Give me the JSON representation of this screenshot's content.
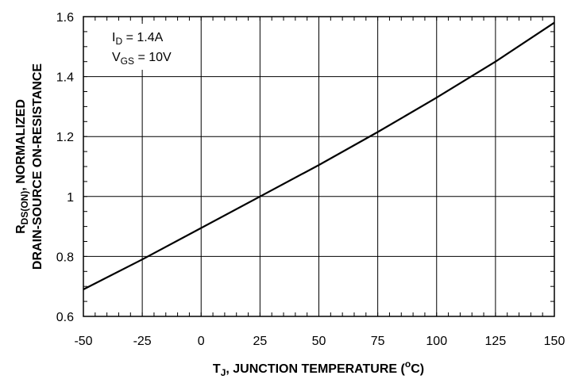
{
  "chart_data": {
    "type": "line",
    "xlabel": {
      "main": "T",
      "sub": "J",
      "rest": ", JUNCTION TEMPERATURE (",
      "sup": "o",
      "end": "C)"
    },
    "ylabel": {
      "line1_main": "R",
      "line1_sub": "DS(ON)",
      "line1_rest": ", NORMALIZED",
      "line2": "DRAIN-SOURCE ON-RESISTANCE"
    },
    "annotations": [
      {
        "main": "I",
        "sub": "D",
        "rest": " = 1.4A"
      },
      {
        "main": "V",
        "sub": "GS",
        "rest": " = 10V"
      }
    ],
    "xlim": [
      -50,
      150
    ],
    "ylim": [
      0.6,
      1.6
    ],
    "xticks": [
      -50,
      -25,
      0,
      25,
      50,
      75,
      100,
      125,
      150
    ],
    "xtick_labels": [
      "-50",
      "-25",
      "0",
      "25",
      "50",
      "75",
      "100",
      "125",
      "150"
    ],
    "yticks": [
      0.6,
      0.8,
      1.0,
      1.2,
      1.4,
      1.6
    ],
    "ytick_labels": [
      "0.6",
      "0.8",
      "1",
      "1.2",
      "1.4",
      "1.6"
    ],
    "grid": true,
    "series": [
      {
        "x": [
          -50,
          -25,
          0,
          25,
          50,
          75,
          100,
          125,
          150
        ],
        "y": [
          0.69,
          0.79,
          0.895,
          1.0,
          1.105,
          1.215,
          1.33,
          1.45,
          1.58
        ]
      }
    ]
  }
}
